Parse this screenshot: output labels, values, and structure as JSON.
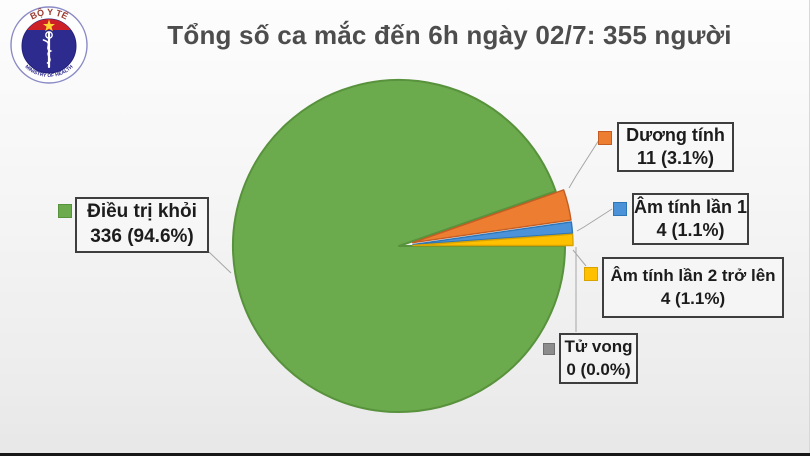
{
  "logo": {
    "top_text": "BỘ Y TẾ",
    "bottom_text": "MINISTRY OF HEALTH",
    "colors": {
      "ring": "#8a8ac6",
      "inner": "#2d2b8e",
      "band": "#ce2127",
      "star": "#ffd633",
      "staff": "#ffffff",
      "top_text": "#9c3a2e"
    }
  },
  "chart_data": {
    "type": "pie",
    "title": "Tổng số ca mắc đến 6h ngày 02/7: 355 người",
    "total": 355,
    "unit": "người",
    "legend_position": "callouts-around-pie",
    "start_angle_deg": 0,
    "direction": "clockwise",
    "slices": [
      {
        "label": "Điều trị khỏi",
        "value": 336,
        "percent": 94.6,
        "value_text": "336 (94.6%)",
        "color": "#6CAB4D",
        "border": "#58923C"
      },
      {
        "label": "Dương tính",
        "value": 11,
        "percent": 3.1,
        "value_text": "11 (3.1%)",
        "color": "#ED7D31",
        "border": "#C45D23"
      },
      {
        "label": "Âm tính lần 1",
        "value": 4,
        "percent": 1.1,
        "value_text": "4 (1.1%)",
        "color": "#4B92D8",
        "border": "#2E75B6"
      },
      {
        "label": "Âm tính lần 2 trở lên",
        "value": 4,
        "percent": 1.1,
        "value_text": "4 (1.1%)",
        "color": "#FFC000",
        "border": "#D9A400"
      },
      {
        "label": "Tử vong",
        "value": 0,
        "percent": 0.0,
        "value_text": "0 (0.0%)",
        "color": "#8C8C8C",
        "border": "#6F6F6F"
      }
    ]
  }
}
